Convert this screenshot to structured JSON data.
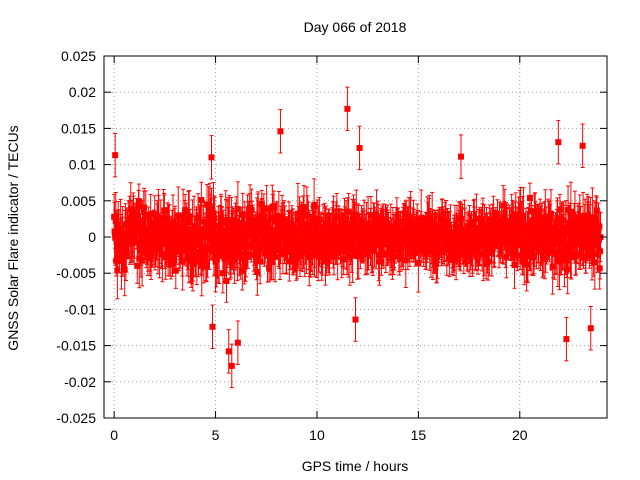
{
  "chart_data": {
    "type": "scatter",
    "title": "Day 066 of 2018",
    "xlabel": "GPS time / hours",
    "ylabel": "GNSS Solar Flare indicator / TECUs",
    "xlim": [
      -0.5,
      24.3
    ],
    "ylim": [
      -0.025,
      0.025
    ],
    "x_ticks": [
      0,
      5,
      10,
      15,
      20
    ],
    "x_tick_labels": [
      "0",
      "5",
      "10",
      "15",
      "20"
    ],
    "y_ticks": [
      -0.025,
      -0.02,
      -0.015,
      -0.01,
      -0.005,
      0,
      0.005,
      0.01,
      0.015,
      0.02,
      0.025
    ],
    "y_tick_labels": [
      "-0.025",
      "-0.02",
      "-0.015",
      "-0.01",
      "-0.005",
      "0",
      "0.005",
      "0.01",
      "0.015",
      "0.02",
      "0.025"
    ],
    "grid": true,
    "series": [
      {
        "name": "GNSS Solar Flare indicator",
        "color": "#ff0000",
        "marker": "square",
        "error_bars": true,
        "sampling_interval_hours": 0.02,
        "time_range_hours": [
          0,
          23.98
        ],
        "typical_error": 0.003,
        "noise_envelope": [
          {
            "x": 0,
            "amplitude": 0.0095
          },
          {
            "x": 3,
            "amplitude": 0.0085
          },
          {
            "x": 6,
            "amplitude": 0.0105
          },
          {
            "x": 9,
            "amplitude": 0.0075
          },
          {
            "x": 12,
            "amplitude": 0.0085
          },
          {
            "x": 15,
            "amplitude": 0.0062
          },
          {
            "x": 18,
            "amplitude": 0.0068
          },
          {
            "x": 21,
            "amplitude": 0.009
          },
          {
            "x": 24,
            "amplitude": 0.01
          }
        ],
        "notable_points": [
          {
            "x": 0.05,
            "y": 0.0113
          },
          {
            "x": 4.8,
            "y": 0.011
          },
          {
            "x": 4.85,
            "y": -0.0124
          },
          {
            "x": 5.65,
            "y": -0.0158
          },
          {
            "x": 5.8,
            "y": -0.0178
          },
          {
            "x": 6.1,
            "y": -0.0146
          },
          {
            "x": 8.2,
            "y": 0.0146
          },
          {
            "x": 11.5,
            "y": 0.0177
          },
          {
            "x": 11.9,
            "y": -0.0114
          },
          {
            "x": 12.1,
            "y": 0.0123
          },
          {
            "x": 17.1,
            "y": 0.0111
          },
          {
            "x": 21.9,
            "y": 0.0131
          },
          {
            "x": 22.3,
            "y": -0.0141
          },
          {
            "x": 23.1,
            "y": 0.0126
          },
          {
            "x": 23.5,
            "y": -0.0126
          }
        ]
      }
    ]
  }
}
